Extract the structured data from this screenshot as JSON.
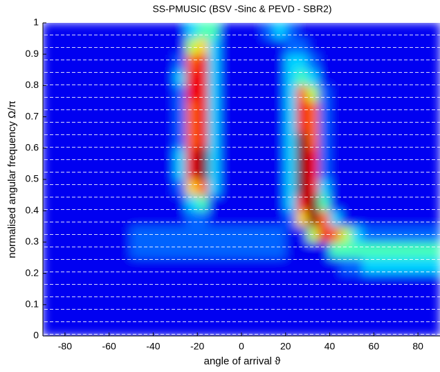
{
  "chart_data": {
    "type": "heatmap",
    "title": "SS-PMUSIC (BSV -Sinc & PEVD - SBR2)",
    "xlabel": "angle of arrival ϑ",
    "ylabel": "normalised angular frequency Ω/π",
    "x": [
      -87.5,
      -82.5,
      -77.5,
      -72.5,
      -67.5,
      -62.5,
      -57.5,
      -52.5,
      -47.5,
      -42.5,
      -37.5,
      -32.5,
      -27.5,
      -22.5,
      -17.5,
      -12.5,
      -7.5,
      -2.5,
      2.5,
      7.5,
      12.5,
      17.5,
      22.5,
      27.5,
      32.5,
      37.5,
      42.5,
      47.5,
      52.5,
      57.5,
      62.5,
      67.5,
      72.5,
      77.5,
      82.5,
      87.5
    ],
    "y": [
      0.025,
      0.075,
      0.125,
      0.175,
      0.225,
      0.275,
      0.325,
      0.375,
      0.425,
      0.475,
      0.525,
      0.575,
      0.625,
      0.675,
      0.725,
      0.775,
      0.825,
      0.875,
      0.925,
      0.975
    ],
    "z": [
      [
        1,
        1,
        1,
        1,
        1,
        1,
        1,
        1,
        1,
        1,
        1,
        1,
        1,
        1,
        1,
        1,
        1,
        1,
        1,
        1,
        1,
        1,
        1,
        1,
        1,
        1,
        1,
        1,
        1,
        1,
        1,
        1,
        1,
        1,
        1,
        1
      ],
      [
        1,
        1,
        1,
        1,
        1,
        1,
        1,
        1,
        1,
        1,
        1,
        1,
        1,
        1,
        1,
        1,
        1,
        1,
        1,
        1,
        1,
        1,
        1,
        1,
        1,
        1,
        1,
        1,
        1,
        1,
        1,
        1,
        1,
        1,
        1,
        1
      ],
      [
        1,
        1,
        1,
        1,
        1,
        1,
        1,
        1,
        1,
        1,
        1,
        1,
        1,
        1,
        1,
        1,
        1,
        1,
        1,
        1,
        1,
        1,
        1,
        1,
        1,
        1,
        1,
        1,
        1,
        1,
        1,
        1,
        1,
        1,
        1,
        1
      ],
      [
        1,
        1,
        1,
        1,
        1,
        1,
        1,
        1,
        1,
        1,
        1,
        1,
        1,
        1,
        1,
        1,
        1,
        1,
        1,
        1,
        1,
        1,
        1,
        1,
        1,
        1,
        1,
        1,
        1,
        1,
        1,
        1,
        1,
        1,
        1,
        1
      ],
      [
        1,
        1,
        1,
        1,
        1,
        1,
        1,
        1,
        1,
        1,
        1,
        1,
        1,
        1,
        1,
        1,
        1,
        1,
        1,
        1,
        1,
        1,
        1,
        1,
        1,
        1,
        1,
        2,
        2,
        3,
        3,
        3,
        3,
        3,
        3,
        3
      ],
      [
        1,
        1,
        1,
        1,
        1,
        1,
        1,
        1,
        2,
        2,
        2,
        2,
        2,
        2,
        2,
        2,
        2,
        2,
        2,
        2,
        2,
        2,
        1,
        1,
        1,
        1,
        4,
        4,
        4,
        4,
        4,
        4,
        4,
        4,
        4,
        4
      ],
      [
        1,
        1,
        1,
        1,
        1,
        1,
        1,
        1,
        2,
        2,
        2,
        2,
        2,
        2,
        2,
        2,
        2,
        2,
        2,
        2,
        2,
        2,
        1,
        1,
        5,
        8,
        7,
        5,
        3,
        2,
        2,
        2,
        2,
        2,
        2,
        2
      ],
      [
        1,
        1,
        1,
        1,
        1,
        1,
        1,
        1,
        1,
        1,
        1,
        1,
        1,
        2,
        2,
        1,
        1,
        1,
        1,
        1,
        1,
        1,
        2,
        6,
        9,
        7,
        3,
        1,
        1,
        1,
        1,
        1,
        1,
        1,
        1,
        1
      ],
      [
        1,
        1,
        1,
        1,
        1,
        1,
        1,
        1,
        1,
        1,
        1,
        1,
        1,
        3,
        4,
        1,
        1,
        1,
        1,
        1,
        1,
        1,
        3,
        8,
        9,
        4,
        1,
        1,
        1,
        1,
        1,
        1,
        1,
        1,
        1,
        1
      ],
      [
        1,
        1,
        1,
        1,
        1,
        1,
        1,
        1,
        1,
        1,
        1,
        1,
        2,
        6,
        7,
        3,
        1,
        1,
        1,
        1,
        1,
        1,
        3,
        9,
        8,
        3,
        1,
        1,
        1,
        1,
        1,
        1,
        1,
        1,
        1,
        1
      ],
      [
        1,
        1,
        1,
        1,
        1,
        1,
        1,
        1,
        1,
        1,
        1,
        1,
        3,
        8,
        9,
        3,
        1,
        1,
        1,
        1,
        1,
        1,
        3,
        9,
        8,
        2,
        1,
        1,
        1,
        1,
        1,
        1,
        1,
        1,
        1,
        1
      ],
      [
        1,
        1,
        1,
        1,
        1,
        1,
        1,
        1,
        1,
        1,
        1,
        1,
        3,
        8,
        9,
        3,
        1,
        1,
        1,
        1,
        1,
        1,
        3,
        9,
        8,
        2,
        1,
        1,
        1,
        1,
        1,
        1,
        1,
        1,
        1,
        1
      ],
      [
        1,
        1,
        1,
        1,
        1,
        1,
        1,
        1,
        1,
        1,
        1,
        1,
        2,
        7,
        8,
        3,
        1,
        1,
        1,
        1,
        1,
        1,
        3,
        9,
        7,
        2,
        1,
        1,
        1,
        1,
        1,
        1,
        1,
        1,
        1,
        1
      ],
      [
        1,
        1,
        1,
        1,
        1,
        1,
        1,
        1,
        1,
        1,
        1,
        1,
        2,
        7,
        8,
        3,
        1,
        1,
        1,
        1,
        1,
        1,
        3,
        8,
        7,
        2,
        1,
        1,
        1,
        1,
        1,
        1,
        1,
        1,
        1,
        1
      ],
      [
        1,
        1,
        1,
        1,
        1,
        1,
        1,
        1,
        1,
        1,
        1,
        1,
        2,
        7,
        8,
        3,
        1,
        1,
        1,
        1,
        1,
        1,
        3,
        8,
        7,
        2,
        1,
        1,
        1,
        1,
        1,
        1,
        1,
        1,
        1,
        1
      ],
      [
        1,
        1,
        1,
        1,
        1,
        1,
        1,
        1,
        1,
        1,
        1,
        1,
        2,
        8,
        8,
        3,
        1,
        1,
        1,
        1,
        1,
        1,
        3,
        7,
        5,
        2,
        1,
        1,
        1,
        1,
        1,
        1,
        1,
        1,
        1,
        1
      ],
      [
        1,
        1,
        1,
        1,
        1,
        1,
        1,
        1,
        1,
        1,
        1,
        1,
        3,
        8,
        8,
        3,
        1,
        1,
        1,
        1,
        1,
        1,
        3,
        4,
        3,
        1,
        1,
        1,
        1,
        1,
        1,
        1,
        1,
        1,
        1,
        1
      ],
      [
        1,
        1,
        1,
        1,
        1,
        1,
        1,
        1,
        1,
        1,
        1,
        1,
        2,
        7,
        8,
        3,
        1,
        1,
        1,
        1,
        1,
        1,
        3,
        3,
        2,
        1,
        1,
        1,
        1,
        1,
        1,
        1,
        1,
        1,
        1,
        1
      ],
      [
        1,
        1,
        1,
        1,
        1,
        1,
        1,
        1,
        1,
        1,
        1,
        1,
        1,
        5,
        6,
        3,
        1,
        1,
        1,
        1,
        1,
        1,
        2,
        2,
        1,
        1,
        1,
        1,
        1,
        1,
        1,
        1,
        1,
        1,
        1,
        1
      ],
      [
        1,
        1,
        1,
        1,
        1,
        1,
        1,
        1,
        1,
        1,
        1,
        1,
        1,
        3,
        4,
        4,
        1,
        1,
        1,
        1,
        2,
        3,
        2,
        1,
        1,
        1,
        1,
        1,
        1,
        1,
        1,
        1,
        1,
        1,
        1,
        1
      ]
    ],
    "xlim": [
      -90,
      90
    ],
    "ylim": [
      0,
      1
    ],
    "xticks": [
      -80,
      -60,
      -40,
      -20,
      0,
      20,
      40,
      60,
      80
    ],
    "yticks": [
      0,
      0.1,
      0.2,
      0.3,
      0.4,
      0.5,
      0.6,
      0.7,
      0.8,
      0.9,
      1
    ],
    "colormap": "jet"
  }
}
